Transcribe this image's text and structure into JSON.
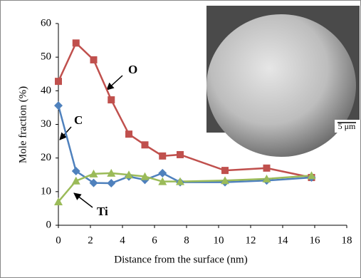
{
  "chart_data": {
    "type": "line",
    "xlabel": "Distance from the surface (nm)",
    "ylabel": "Mole fraction (%)",
    "x": [
      0,
      1.1,
      2.2,
      3.3,
      4.4,
      5.4,
      6.5,
      7.6,
      10.4,
      13,
      15.8
    ],
    "series": [
      {
        "name": "O",
        "color": "#c0504d",
        "marker": "square",
        "values": [
          42.8,
          54.2,
          49.2,
          37.3,
          27.1,
          23.9,
          20.6,
          21,
          16.3,
          17,
          14.2
        ]
      },
      {
        "name": "C",
        "color": "#4f81bd",
        "marker": "diamond",
        "values": [
          35.6,
          16.1,
          12.6,
          12.5,
          14.5,
          13.5,
          15.5,
          12.8,
          12.8,
          13.3,
          14.2
        ]
      },
      {
        "name": "Ti",
        "color": "#9bbb59",
        "marker": "triangle",
        "values": [
          7,
          13.2,
          15.3,
          15.5,
          15,
          14.5,
          13,
          13,
          13.3,
          13.8,
          14.8
        ]
      }
    ],
    "xlim": [
      0,
      18
    ],
    "xticks": [
      0,
      2,
      4,
      6,
      8,
      10,
      12,
      14,
      16,
      18
    ],
    "ylim": [
      0,
      60
    ],
    "yticks": [
      0,
      10,
      20,
      30,
      40,
      50,
      60
    ],
    "grid": false,
    "inset_scale_label": "5 μm"
  }
}
